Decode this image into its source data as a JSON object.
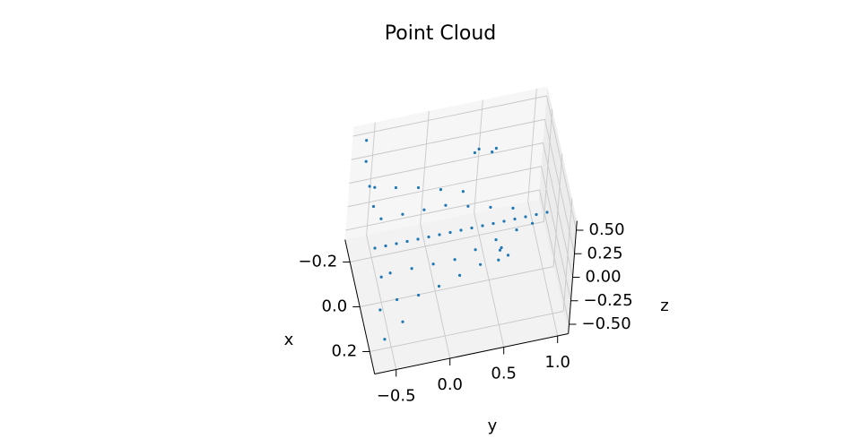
{
  "chart_data": {
    "type": "scatter3d",
    "title": "Point Cloud",
    "x_label": "x",
    "y_label": "y",
    "z_label": "z",
    "color": "#1f77b4",
    "grid": true,
    "xlim": [
      -0.3,
      0.3
    ],
    "ylim": [
      -0.7,
      1.1
    ],
    "zlim": [
      -0.6,
      0.6
    ],
    "xticks": [
      {
        "value": -0.2,
        "label": "−0.2"
      },
      {
        "value": 0,
        "label": "0.0"
      },
      0.2
    ],
    "yticks": [
      {
        "value": -0.5,
        "label": "−0.5"
      },
      {
        "value": 0,
        "label": "0.0"
      },
      0.5,
      {
        "value": 1,
        "label": "1.0"
      }
    ],
    "zticks": [
      {
        "value": -0.5,
        "label": "−0.50"
      },
      {
        "value": -0.25,
        "label": "−0.25"
      },
      {
        "value": 0,
        "label": "0.00"
      },
      0.25,
      {
        "value": 0.5,
        "label": "0.50"
      }
    ],
    "points": [
      [
        0,
        -0.6,
        0
      ],
      [
        0,
        -0.5,
        0
      ],
      [
        0,
        -0.4,
        0
      ],
      [
        0,
        -0.3,
        0
      ],
      [
        0,
        -0.2,
        0
      ],
      [
        0,
        -0.1,
        0
      ],
      [
        0,
        0,
        0
      ],
      [
        0,
        0.1,
        0
      ],
      [
        0,
        0.2,
        0
      ],
      [
        0,
        0.3,
        0
      ],
      [
        0,
        0.4,
        0
      ],
      [
        0,
        0.5,
        0
      ],
      [
        0,
        0.6,
        0
      ],
      [
        0,
        0.7,
        0
      ],
      [
        0,
        0.8,
        0
      ],
      [
        0,
        0.9,
        0
      ],
      [
        0,
        1.0,
        0
      ],
      [
        0.1,
        -0.5,
        -0.05
      ],
      [
        0.2,
        -0.48,
        -0.1
      ],
      [
        0.28,
        -0.46,
        -0.15
      ],
      [
        -0.1,
        -0.5,
        0.05
      ],
      [
        -0.2,
        -0.52,
        0.15
      ],
      [
        0.1,
        -0.3,
        -0.05
      ],
      [
        0.2,
        -0.28,
        -0.1
      ],
      [
        -0.1,
        -0.3,
        0.05
      ],
      [
        -0.2,
        -0.32,
        0.1
      ],
      [
        0.1,
        -0.1,
        -0.05
      ],
      [
        0.18,
        -0.08,
        -0.1
      ],
      [
        -0.1,
        -0.1,
        0.05
      ],
      [
        -0.18,
        -0.12,
        0.1
      ],
      [
        0.1,
        0.1,
        -0.05
      ],
      [
        0.16,
        0.12,
        -0.08
      ],
      [
        -0.1,
        0.1,
        0.05
      ],
      [
        -0.16,
        0.08,
        0.08
      ],
      [
        0.08,
        0.3,
        -0.04
      ],
      [
        0.14,
        0.32,
        -0.06
      ],
      [
        -0.08,
        0.3,
        0.04
      ],
      [
        -0.14,
        0.28,
        0.06
      ],
      [
        0.06,
        0.5,
        -0.03
      ],
      [
        0.1,
        0.52,
        -0.05
      ],
      [
        -0.06,
        0.5,
        0.03
      ],
      [
        0.04,
        0.7,
        -0.02
      ],
      [
        -0.04,
        0.7,
        0.02
      ],
      [
        0.03,
        0.85,
        -0.01
      ],
      [
        -0.15,
        -0.6,
        0.3
      ],
      [
        -0.2,
        -0.62,
        0.45
      ],
      [
        -0.25,
        -0.6,
        0.55
      ],
      [
        -0.1,
        -0.58,
        0.2
      ],
      [
        0.15,
        -0.6,
        -0.3
      ],
      [
        0.22,
        -0.58,
        -0.45
      ],
      [
        0.05,
        -0.55,
        -0.2
      ],
      [
        -0.2,
        0.4,
        0.3
      ],
      [
        -0.22,
        0.45,
        0.28
      ],
      [
        -0.18,
        0.55,
        0.32
      ],
      [
        -0.2,
        0.6,
        0.3
      ],
      [
        0.15,
        0.5,
        0.1
      ],
      [
        0.18,
        0.55,
        0.08
      ],
      [
        0.2,
        0.45,
        0.1
      ]
    ]
  }
}
